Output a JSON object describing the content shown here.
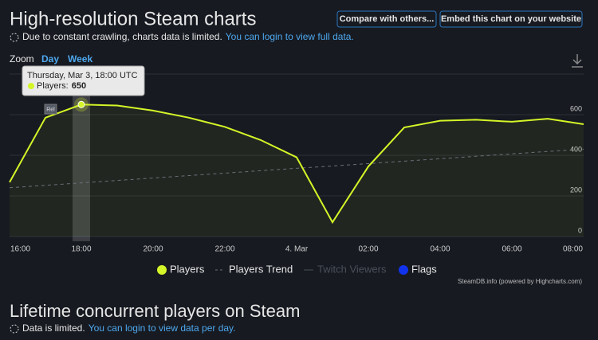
{
  "header": {
    "title": "High-resolution Steam charts",
    "buttons": [
      "Compare with others...",
      "Embed this chart on your website"
    ],
    "notice": "Due to constant crawling, charts data is limited.",
    "notice_link": "You can login to view full data."
  },
  "zoom": {
    "label": "Zoom",
    "options": [
      "Day",
      "Week"
    ]
  },
  "chart_data": {
    "type": "line",
    "categories": [
      "16:00",
      null,
      "18:00",
      null,
      "20:00",
      null,
      "22:00",
      null,
      "4. Mar",
      null,
      "02:00",
      null,
      "04:00",
      null,
      "06:00",
      null,
      "08:00"
    ],
    "series": [
      {
        "name": "Players",
        "color": "#d4f527",
        "values": [
          267,
          585,
          650,
          645,
          620,
          585,
          540,
          475,
          390,
          70,
          345,
          537,
          570,
          575,
          565,
          580,
          553
        ]
      },
      {
        "name": "Players Trend",
        "color": "#6b7079",
        "values": [
          240,
          252,
          264,
          276,
          288,
          300,
          312,
          324,
          336,
          347,
          359,
          371,
          383,
          395,
          407,
          419,
          430
        ]
      }
    ],
    "legend_extra": [
      {
        "name": "Twitch Viewers",
        "color": "#4a4f58"
      },
      {
        "name": "Flags",
        "color": "#1133ee"
      }
    ],
    "ylim": [
      0,
      800
    ],
    "yticks": [
      0,
      200,
      400,
      600
    ],
    "grid": true,
    "tooltip": {
      "title": "Thursday, Mar 3, 18:00 UTC",
      "label": "Players:"
    },
    "flag": "Rel",
    "credit": "SteamDB.info (powered by Highcharts.com)"
  },
  "section2": {
    "title": "Lifetime concurrent players on Steam",
    "notice": "Data is limited.",
    "notice_link": "You can login to view data per day."
  }
}
